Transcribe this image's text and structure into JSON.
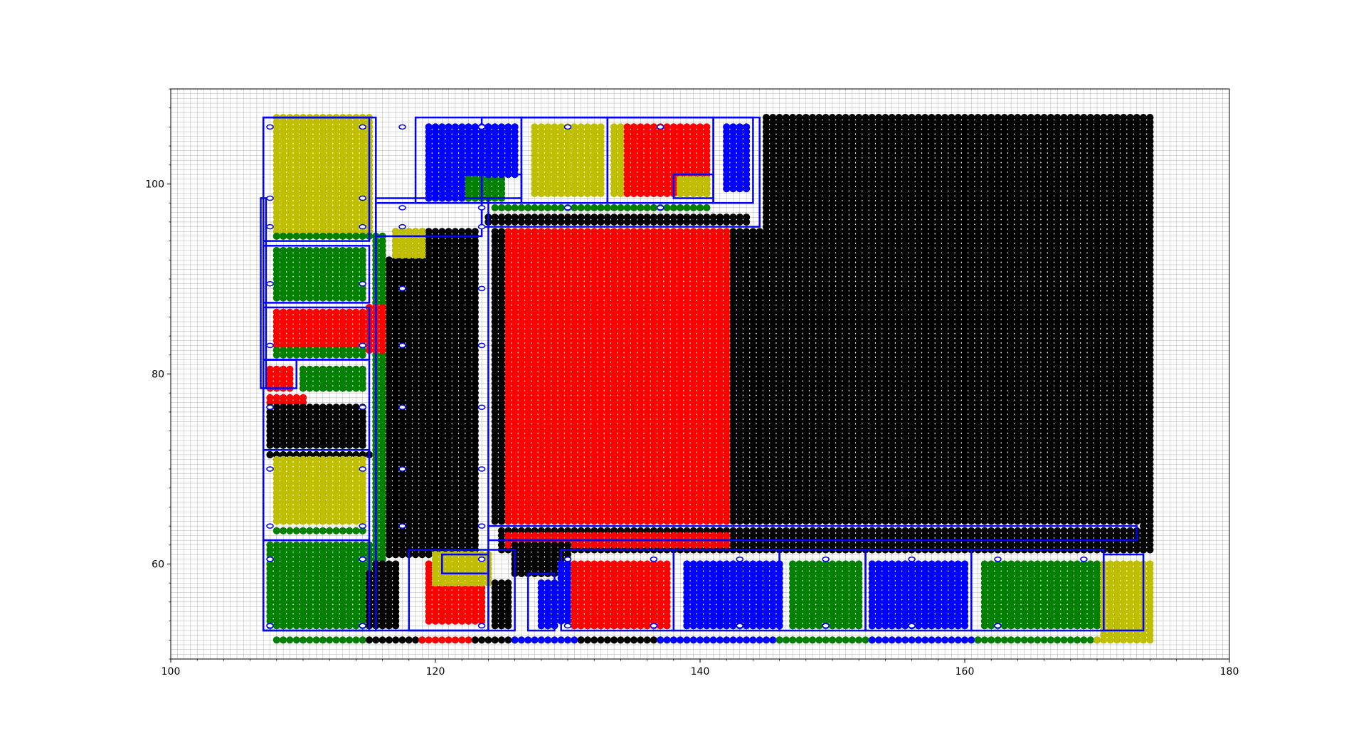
{
  "chart_data": {
    "type": "scatter",
    "title": "",
    "xlabel": "",
    "ylabel": "",
    "xlim": [
      100,
      180
    ],
    "ylim": [
      50,
      110
    ],
    "grid": true,
    "grid_step": 0.5,
    "x_ticks": [
      100,
      120,
      140,
      160,
      180
    ],
    "y_ticks": [
      60,
      80,
      100
    ],
    "point_spacing": 0.5,
    "colors": {
      "yellow": "#bfbf00",
      "green": "#008000",
      "red": "#ff0000",
      "blue": "#0000ff",
      "black": "#000000",
      "outline": "#0000ff",
      "grid": "#b0b0b0"
    },
    "point_regions": [
      {
        "color": "black",
        "x": [
          145,
          174
        ],
        "y": [
          64.5,
          107
        ]
      },
      {
        "color": "black",
        "x": [
          142.5,
          145
        ],
        "y": [
          64.5,
          95
        ]
      },
      {
        "color": "red",
        "x": [
          125,
          142
        ],
        "y": [
          64.5,
          95
        ]
      },
      {
        "color": "black",
        "x": [
          124.5,
          125
        ],
        "y": [
          64.5,
          95
        ]
      },
      {
        "color": "black",
        "x": [
          125,
          173.5
        ],
        "y": [
          61.5,
          63.5
        ]
      },
      {
        "color": "red",
        "x": [
          125.5,
          142
        ],
        "y": [
          62,
          63
        ]
      },
      {
        "color": "black",
        "x": [
          124,
          143.5
        ],
        "y": [
          96,
          96.5
        ]
      },
      {
        "color": "black",
        "x": [
          173.5,
          174
        ],
        "y": [
          61.5,
          64
        ]
      },
      {
        "color": "black",
        "x": [
          117,
          123
        ],
        "y": [
          61,
          95
        ]
      },
      {
        "color": "black",
        "x": [
          116.5,
          117
        ],
        "y": [
          61,
          92
        ]
      },
      {
        "color": "yellow",
        "x": [
          117,
          119
        ],
        "y": [
          92.5,
          95
        ]
      },
      {
        "color": "yellow",
        "x": [
          108,
          115
        ],
        "y": [
          95,
          107
        ]
      },
      {
        "color": "green",
        "x": [
          108,
          115
        ],
        "y": [
          94.5,
          94.5
        ]
      },
      {
        "color": "green",
        "x": [
          108,
          114.5
        ],
        "y": [
          88,
          93
        ]
      },
      {
        "color": "red",
        "x": [
          108,
          114.5
        ],
        "y": [
          83,
          86.5
        ]
      },
      {
        "color": "green",
        "x": [
          108,
          114.5
        ],
        "y": [
          82,
          82.5
        ]
      },
      {
        "color": "red",
        "x": [
          107.5,
          109
        ],
        "y": [
          78.5,
          80.5
        ]
      },
      {
        "color": "green",
        "x": [
          110,
          114.5
        ],
        "y": [
          78.5,
          80.5
        ]
      },
      {
        "color": "red",
        "x": [
          107.5,
          110
        ],
        "y": [
          77,
          77.5
        ]
      },
      {
        "color": "black",
        "x": [
          107.5,
          114.5
        ],
        "y": [
          72.5,
          76.5
        ]
      },
      {
        "color": "black",
        "x": [
          107.5,
          115
        ],
        "y": [
          71.5,
          71.5
        ]
      },
      {
        "color": "yellow",
        "x": [
          108,
          114.5
        ],
        "y": [
          64.5,
          71
        ]
      },
      {
        "color": "green",
        "x": [
          108,
          114.5
        ],
        "y": [
          63.5,
          63.5
        ]
      },
      {
        "color": "green",
        "x": [
          107.5,
          115
        ],
        "y": [
          53.5,
          62
        ]
      },
      {
        "color": "black",
        "x": [
          115,
          115
        ],
        "y": [
          53.5,
          59
        ]
      },
      {
        "color": "green",
        "x": [
          115.5,
          116
        ],
        "y": [
          60.5,
          94.5
        ]
      },
      {
        "color": "red",
        "x": [
          115,
          116
        ],
        "y": [
          82.5,
          87
        ]
      },
      {
        "color": "black",
        "x": [
          115.5,
          117
        ],
        "y": [
          53.5,
          60
        ]
      },
      {
        "color": "blue",
        "x": [
          119.5,
          124
        ],
        "y": [
          98.5,
          106
        ]
      },
      {
        "color": "green",
        "x": [
          122.5,
          125
        ],
        "y": [
          98.5,
          100.5
        ]
      },
      {
        "color": "blue",
        "x": [
          124,
          126
        ],
        "y": [
          101,
          106
        ]
      },
      {
        "color": "yellow",
        "x": [
          127.5,
          132.5
        ],
        "y": [
          99,
          106
        ]
      },
      {
        "color": "yellow",
        "x": [
          133.5,
          134.5
        ],
        "y": [
          99,
          106
        ]
      },
      {
        "color": "red",
        "x": [
          134.5,
          140.5
        ],
        "y": [
          99,
          106
        ]
      },
      {
        "color": "yellow",
        "x": [
          138.5,
          140.5
        ],
        "y": [
          99,
          100.5
        ]
      },
      {
        "color": "blue",
        "x": [
          142,
          143.5
        ],
        "y": [
          99.5,
          106
        ]
      },
      {
        "color": "green",
        "x": [
          124.5,
          140.5
        ],
        "y": [
          97.5,
          97.5
        ]
      },
      {
        "color": "red",
        "x": [
          119.5,
          123.5
        ],
        "y": [
          54,
          60
        ]
      },
      {
        "color": "yellow",
        "x": [
          120,
          124
        ],
        "y": [
          58,
          61
        ]
      },
      {
        "color": "black",
        "x": [
          126,
          130
        ],
        "y": [
          59,
          62
        ]
      },
      {
        "color": "black",
        "x": [
          124.5,
          125.5
        ],
        "y": [
          53.5,
          58
        ]
      },
      {
        "color": "blue",
        "x": [
          128,
          129
        ],
        "y": [
          53.5,
          58
        ]
      },
      {
        "color": "blue",
        "x": [
          129.5,
          130
        ],
        "y": [
          54,
          60
        ]
      },
      {
        "color": "red",
        "x": [
          130.5,
          137.5
        ],
        "y": [
          53.5,
          60
        ]
      },
      {
        "color": "blue",
        "x": [
          139,
          146
        ],
        "y": [
          53.5,
          60
        ]
      },
      {
        "color": "green",
        "x": [
          147,
          152
        ],
        "y": [
          53.5,
          60
        ]
      },
      {
        "color": "blue",
        "x": [
          153,
          160
        ],
        "y": [
          53.5,
          60
        ]
      },
      {
        "color": "green",
        "x": [
          161.5,
          170
        ],
        "y": [
          53.5,
          60
        ]
      },
      {
        "color": "yellow",
        "x": [
          170.5,
          174
        ],
        "y": [
          52.5,
          60
        ]
      },
      {
        "color": "green",
        "x": [
          108,
          115
        ],
        "y": [
          52,
          52
        ]
      },
      {
        "color": "black",
        "x": [
          115,
          119
        ],
        "y": [
          52,
          52
        ]
      },
      {
        "color": "red",
        "x": [
          119,
          123
        ],
        "y": [
          52,
          52
        ]
      },
      {
        "color": "black",
        "x": [
          123,
          126
        ],
        "y": [
          52,
          52
        ]
      },
      {
        "color": "blue",
        "x": [
          126,
          131
        ],
        "y": [
          52,
          52
        ]
      },
      {
        "color": "black",
        "x": [
          131,
          137
        ],
        "y": [
          52,
          52
        ]
      },
      {
        "color": "blue",
        "x": [
          137,
          146
        ],
        "y": [
          52,
          52
        ]
      },
      {
        "color": "green",
        "x": [
          146,
          153
        ],
        "y": [
          52,
          52
        ]
      },
      {
        "color": "blue",
        "x": [
          153,
          161
        ],
        "y": [
          52,
          52
        ]
      },
      {
        "color": "green",
        "x": [
          161,
          170
        ],
        "y": [
          52,
          52
        ]
      },
      {
        "color": "yellow",
        "x": [
          170,
          174
        ],
        "y": [
          52,
          52
        ]
      }
    ],
    "outline_boxes": [
      {
        "x": [
          107,
          115.5
        ],
        "y": [
          53,
          107
        ]
      },
      {
        "x": [
          106.8,
          107.2
        ],
        "y": [
          78.5,
          98.5
        ]
      },
      {
        "x": [
          107,
          115
        ],
        "y": [
          94,
          107
        ]
      },
      {
        "x": [
          107,
          115
        ],
        "y": [
          87.5,
          93.5
        ]
      },
      {
        "x": [
          107,
          115
        ],
        "y": [
          81.5,
          87
        ]
      },
      {
        "x": [
          107,
          109.5
        ],
        "y": [
          78.5,
          81.5
        ]
      },
      {
        "x": [
          107,
          115
        ],
        "y": [
          72,
          81.5
        ]
      },
      {
        "x": [
          107,
          115
        ],
        "y": [
          62.5,
          72
        ]
      },
      {
        "x": [
          107,
          115
        ],
        "y": [
          53,
          62.5
        ]
      },
      {
        "x": [
          115.5,
          124
        ],
        "y": [
          53,
          98.5
        ]
      },
      {
        "x": [
          115.5,
          123.5
        ],
        "y": [
          94.5,
          98
        ]
      },
      {
        "x": [
          118.5,
          126.5
        ],
        "y": [
          98,
          107
        ]
      },
      {
        "x": [
          123.5,
          126.5
        ],
        "y": [
          98.5,
          101
        ]
      },
      {
        "x": [
          126.5,
          133
        ],
        "y": [
          98,
          107
        ]
      },
      {
        "x": [
          133,
          141
        ],
        "y": [
          98,
          107
        ]
      },
      {
        "x": [
          138,
          141
        ],
        "y": [
          98.5,
          101
        ]
      },
      {
        "x": [
          141,
          144
        ],
        "y": [
          98,
          107
        ]
      },
      {
        "x": [
          123.5,
          144.5
        ],
        "y": [
          95.5,
          107
        ]
      },
      {
        "x": [
          124,
          173
        ],
        "y": [
          62.5,
          64
        ]
      },
      {
        "x": [
          118,
          124
        ],
        "y": [
          53,
          61.5
        ]
      },
      {
        "x": [
          120.5,
          124
        ],
        "y": [
          59,
          61
        ]
      },
      {
        "x": [
          124,
          126
        ],
        "y": [
          53,
          61.5
        ]
      },
      {
        "x": [
          127,
          129
        ],
        "y": [
          53,
          59
        ]
      },
      {
        "x": [
          129.5,
          138
        ],
        "y": [
          53,
          61.5
        ]
      },
      {
        "x": [
          138,
          146
        ],
        "y": [
          53,
          61.5
        ]
      },
      {
        "x": [
          146,
          152.5
        ],
        "y": [
          53,
          61.5
        ]
      },
      {
        "x": [
          152.5,
          160.5
        ],
        "y": [
          53,
          61.5
        ]
      },
      {
        "x": [
          160.5,
          170.5
        ],
        "y": [
          53,
          61.5
        ]
      },
      {
        "x": [
          170.5,
          173.5
        ],
        "y": [
          53,
          61
        ]
      }
    ],
    "outline_markers": [
      [
        107.5,
        106
      ],
      [
        114.5,
        106
      ],
      [
        117.5,
        106
      ],
      [
        123.5,
        106
      ],
      [
        130,
        106
      ],
      [
        137,
        106
      ],
      [
        107.5,
        98.5
      ],
      [
        114.5,
        98.5
      ],
      [
        117.5,
        97.5
      ],
      [
        123.5,
        97.5
      ],
      [
        130,
        97.5
      ],
      [
        137,
        97.5
      ],
      [
        107.5,
        95.5
      ],
      [
        114.5,
        95.5
      ],
      [
        117.5,
        95.5
      ],
      [
        123.5,
        95.5
      ],
      [
        107.5,
        89.5
      ],
      [
        114.5,
        89.5
      ],
      [
        117.5,
        89
      ],
      [
        123.5,
        89
      ],
      [
        107.5,
        83
      ],
      [
        114.5,
        83
      ],
      [
        117.5,
        83
      ],
      [
        123.5,
        83
      ],
      [
        107.5,
        76.5
      ],
      [
        114.5,
        76.5
      ],
      [
        117.5,
        76.5
      ],
      [
        123.5,
        76.5
      ],
      [
        107.5,
        70
      ],
      [
        114.5,
        70
      ],
      [
        117.5,
        70
      ],
      [
        123.5,
        70
      ],
      [
        107.5,
        64
      ],
      [
        114.5,
        64
      ],
      [
        117.5,
        64
      ],
      [
        123.5,
        64
      ],
      [
        107.5,
        60.5
      ],
      [
        114.5,
        60.5
      ],
      [
        123.5,
        60.5
      ],
      [
        130,
        60.5
      ],
      [
        136.5,
        60.5
      ],
      [
        143,
        60.5
      ],
      [
        149.5,
        60.5
      ],
      [
        156,
        60.5
      ],
      [
        162.5,
        60.5
      ],
      [
        169,
        60.5
      ],
      [
        107.5,
        53.5
      ],
      [
        114.5,
        53.5
      ],
      [
        123.5,
        53.5
      ],
      [
        130,
        53.5
      ],
      [
        136.5,
        53.5
      ],
      [
        143,
        53.5
      ],
      [
        149.5,
        53.5
      ],
      [
        156,
        53.5
      ],
      [
        162.5,
        53.5
      ]
    ]
  }
}
